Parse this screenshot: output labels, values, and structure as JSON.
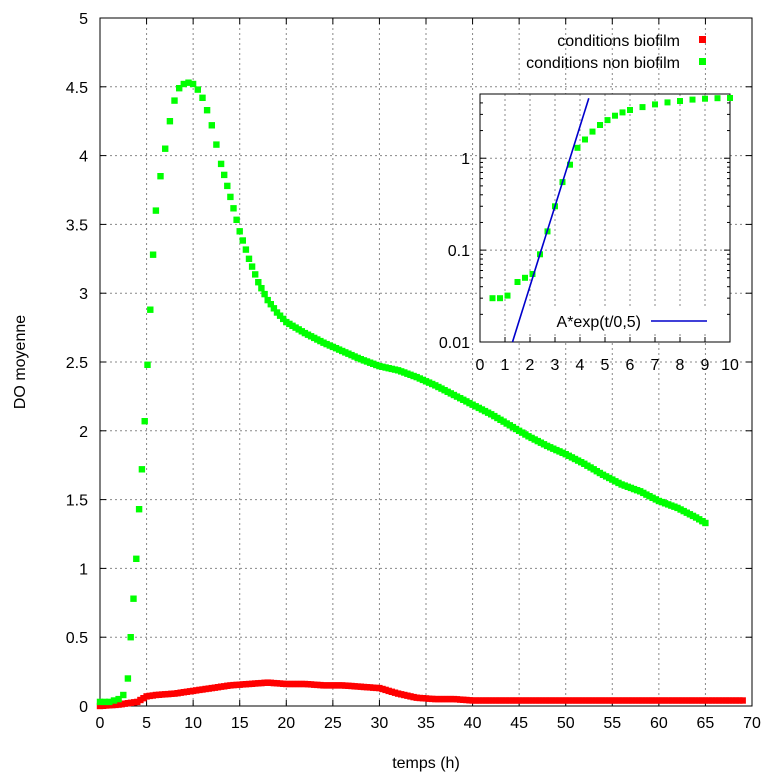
{
  "chart_data": [
    {
      "type": "scatter",
      "title": "",
      "xlabel": "temps (h)",
      "ylabel": "DO moyenne",
      "xlim": [
        0,
        70
      ],
      "ylim": [
        0,
        5
      ],
      "xticks": [
        "0",
        "5",
        "10",
        "15",
        "20",
        "25",
        "30",
        "35",
        "40",
        "45",
        "50",
        "55",
        "60",
        "65",
        "70"
      ],
      "yticks": [
        "0",
        "0.5",
        "1",
        "1.5",
        "2",
        "2.5",
        "3",
        "3.5",
        "4",
        "4.5",
        "5"
      ],
      "grid": true,
      "legend_position": "top-right",
      "series": [
        {
          "name": "conditions biofilm",
          "color": "#ff0000",
          "marker": "square",
          "x": [
            0,
            2,
            3,
            4,
            5,
            6,
            8,
            10,
            12,
            14,
            16,
            18,
            20,
            22,
            24,
            26,
            28,
            30,
            32,
            34,
            36,
            38,
            40,
            45,
            50,
            55,
            60,
            65,
            69
          ],
          "y": [
            0.0,
            0.01,
            0.02,
            0.03,
            0.07,
            0.08,
            0.09,
            0.11,
            0.13,
            0.15,
            0.16,
            0.17,
            0.16,
            0.16,
            0.15,
            0.15,
            0.14,
            0.13,
            0.09,
            0.06,
            0.05,
            0.05,
            0.04,
            0.04,
            0.04,
            0.04,
            0.04,
            0.04,
            0.04
          ]
        },
        {
          "name": "conditions non biofilm",
          "color": "#00ff00",
          "marker": "square",
          "x": [
            0,
            0.5,
            1,
            1.5,
            2,
            2.5,
            3,
            3.3,
            3.6,
            3.9,
            4.2,
            4.5,
            4.8,
            5.1,
            5.4,
            5.7,
            6,
            6.5,
            7,
            7.5,
            8,
            8.5,
            9,
            9.5,
            10,
            10.5,
            11,
            11.5,
            12,
            12.5,
            13,
            14,
            15,
            16,
            17,
            18,
            19,
            20,
            22,
            24,
            26,
            28,
            30,
            32,
            34,
            36,
            38,
            40,
            42,
            44,
            46,
            48,
            50,
            52,
            54,
            56,
            58,
            60,
            62,
            64,
            65
          ],
          "y": [
            0.03,
            0.03,
            0.03,
            0.04,
            0.05,
            0.08,
            0.2,
            0.5,
            0.78,
            1.07,
            1.43,
            1.72,
            2.07,
            2.48,
            2.88,
            3.28,
            3.6,
            3.85,
            4.05,
            4.25,
            4.4,
            4.49,
            4.52,
            4.53,
            4.52,
            4.48,
            4.42,
            4.33,
            4.22,
            4.08,
            3.94,
            3.7,
            3.45,
            3.25,
            3.08,
            2.95,
            2.86,
            2.79,
            2.71,
            2.64,
            2.58,
            2.52,
            2.47,
            2.44,
            2.39,
            2.33,
            2.26,
            2.19,
            2.12,
            2.04,
            1.96,
            1.89,
            1.83,
            1.76,
            1.68,
            1.61,
            1.56,
            1.49,
            1.44,
            1.37,
            1.33
          ]
        }
      ]
    },
    {
      "type": "scatter",
      "title": "",
      "xlabel": "",
      "ylabel": "",
      "xlim": [
        0,
        10
      ],
      "ylim": [
        0.01,
        5
      ],
      "yscale": "log",
      "xticks": [
        "0",
        "1",
        "2",
        "3",
        "4",
        "5",
        "6",
        "7",
        "8",
        "9",
        "10"
      ],
      "yticks": [
        "0.01",
        "0.1",
        "1"
      ],
      "grid": true,
      "legend_position": "bottom-right",
      "series": [
        {
          "name": "",
          "color": "#00ff00",
          "marker": "square",
          "x": [
            0.5,
            0.8,
            1.1,
            1.5,
            1.8,
            2.1,
            2.4,
            2.7,
            3.0,
            3.3,
            3.6,
            3.9,
            4.2,
            4.5,
            4.8,
            5.1,
            5.4,
            5.7,
            6.0,
            6.5,
            7.0,
            7.5,
            8.0,
            8.5,
            9.0,
            9.5,
            10
          ],
          "y": [
            0.03,
            0.03,
            0.032,
            0.045,
            0.05,
            0.055,
            0.09,
            0.16,
            0.3,
            0.55,
            0.85,
            1.3,
            1.6,
            1.95,
            2.3,
            2.6,
            2.9,
            3.15,
            3.35,
            3.6,
            3.85,
            4.05,
            4.2,
            4.35,
            4.45,
            4.5,
            4.52
          ]
        },
        {
          "name": "A*exp(t/0,5)",
          "color": "#0000cc",
          "marker": "line",
          "x": [
            1.3,
            4.35
          ],
          "y": [
            0.01,
            4.5
          ]
        }
      ]
    }
  ]
}
